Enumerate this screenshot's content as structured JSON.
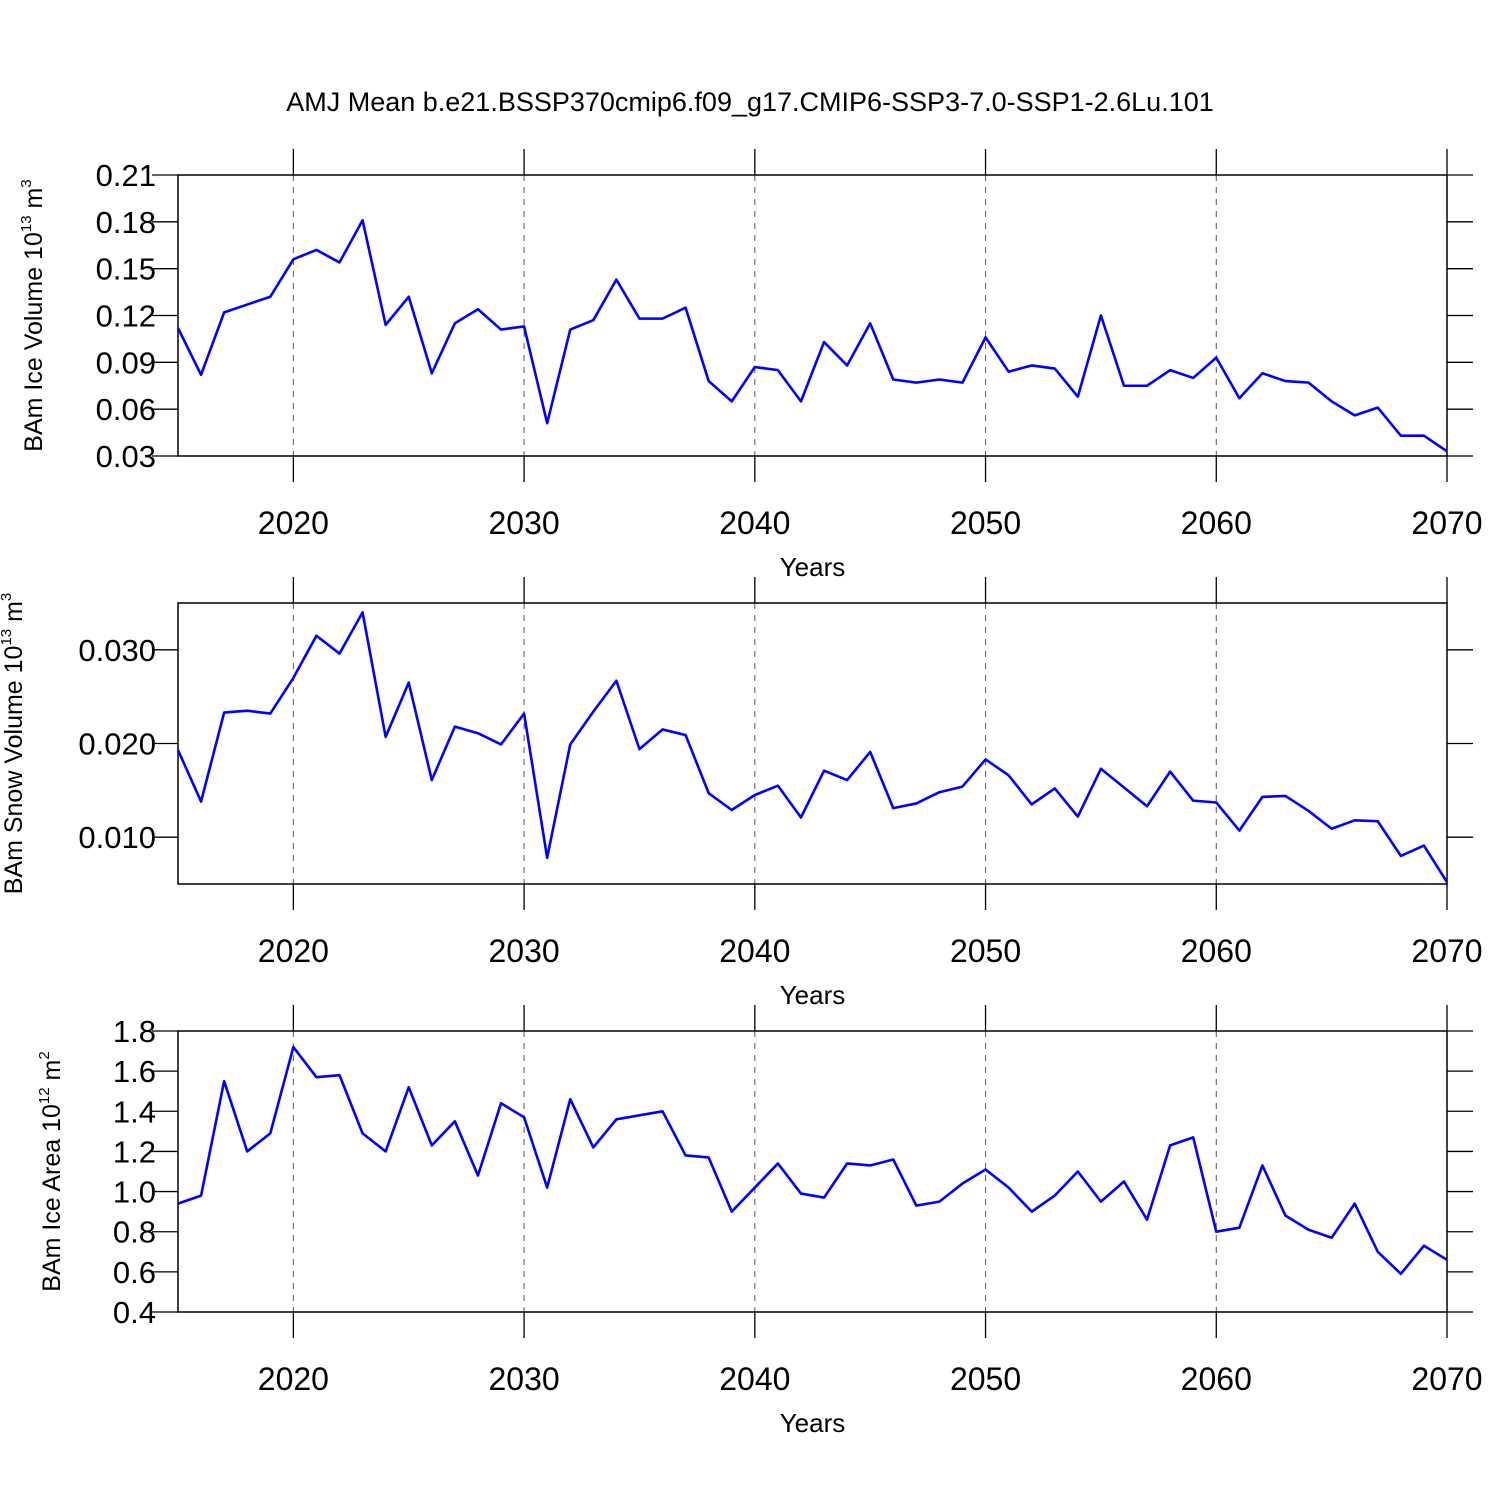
{
  "chart_data": [
    {
      "type": "line",
      "title": "AMJ Mean b.e21.BSSP370cmip6.f09_g17.CMIP6-SSP3-7.0-SSP1-2.6Lu.101",
      "ylabel": [
        "BAm Ice Volume 10",
        "13",
        " m",
        "3"
      ],
      "xlabel": "Years",
      "color": "#0000ff",
      "grid": true,
      "x": [
        2015,
        2016,
        2017,
        2018,
        2019,
        2020,
        2021,
        2022,
        2023,
        2024,
        2025,
        2026,
        2027,
        2028,
        2029,
        2030,
        2031,
        2032,
        2033,
        2034,
        2035,
        2036,
        2037,
        2038,
        2039,
        2040,
        2041,
        2042,
        2043,
        2044,
        2045,
        2046,
        2047,
        2048,
        2049,
        2050,
        2051,
        2052,
        2053,
        2054,
        2055,
        2056,
        2057,
        2058,
        2059,
        2060,
        2061,
        2062,
        2063,
        2064,
        2065,
        2066,
        2067,
        2068,
        2069,
        2070
      ],
      "values": [
        0.112,
        0.082,
        0.122,
        0.127,
        0.132,
        0.156,
        0.162,
        0.154,
        0.181,
        0.114,
        0.132,
        0.083,
        0.115,
        0.124,
        0.111,
        0.113,
        0.051,
        0.111,
        0.117,
        0.143,
        0.118,
        0.118,
        0.125,
        0.078,
        0.065,
        0.087,
        0.085,
        0.065,
        0.103,
        0.088,
        0.115,
        0.079,
        0.077,
        0.079,
        0.077,
        0.106,
        0.084,
        0.088,
        0.086,
        0.068,
        0.12,
        0.075,
        0.075,
        0.085,
        0.08,
        0.093,
        0.067,
        0.083,
        0.078,
        0.077,
        0.065,
        0.056,
        0.061,
        0.043,
        0.043,
        0.033
      ],
      "xlim": [
        2015,
        2070
      ],
      "xticks": [
        2020,
        2030,
        2040,
        2050,
        2060,
        2070
      ],
      "ylim": [
        0.03,
        0.21
      ],
      "yticks": [
        0.03,
        0.06,
        0.09,
        0.12,
        0.15,
        0.18,
        0.21
      ]
    },
    {
      "type": "line",
      "ylabel": [
        "BAm Snow Volume 10",
        "13",
        " m",
        "3"
      ],
      "xlabel": "Years",
      "color": "#0000ff",
      "grid": true,
      "x": [
        2015,
        2016,
        2017,
        2018,
        2019,
        2020,
        2021,
        2022,
        2023,
        2024,
        2025,
        2026,
        2027,
        2028,
        2029,
        2030,
        2031,
        2032,
        2033,
        2034,
        2035,
        2036,
        2037,
        2038,
        2039,
        2040,
        2041,
        2042,
        2043,
        2044,
        2045,
        2046,
        2047,
        2048,
        2049,
        2050,
        2051,
        2052,
        2053,
        2054,
        2055,
        2056,
        2057,
        2058,
        2059,
        2060,
        2061,
        2062,
        2063,
        2064,
        2065,
        2066,
        2067,
        2068,
        2069,
        2070
      ],
      "values": [
        0.0193,
        0.0138,
        0.0233,
        0.0235,
        0.0232,
        0.027,
        0.0315,
        0.0296,
        0.034,
        0.0207,
        0.0265,
        0.0161,
        0.0218,
        0.0211,
        0.0199,
        0.0232,
        0.0078,
        0.0199,
        0.0234,
        0.0267,
        0.0194,
        0.0215,
        0.0209,
        0.0147,
        0.0129,
        0.0145,
        0.0155,
        0.0121,
        0.0171,
        0.0161,
        0.0191,
        0.0131,
        0.0136,
        0.0148,
        0.0154,
        0.0183,
        0.0166,
        0.0135,
        0.0152,
        0.0122,
        0.0173,
        0.0153,
        0.0133,
        0.017,
        0.0139,
        0.0137,
        0.0107,
        0.0143,
        0.0144,
        0.0128,
        0.0109,
        0.0118,
        0.0117,
        0.008,
        0.0091,
        0.0052
      ],
      "xlim": [
        2015,
        2070
      ],
      "xticks": [
        2020,
        2030,
        2040,
        2050,
        2060,
        2070
      ],
      "ylim": [
        0.005,
        0.035
      ],
      "yticks": [
        {
          "value": 0.01,
          "label": "0.010"
        },
        {
          "value": 0.02,
          "label": "0.020"
        },
        {
          "value": 0.03,
          "label": "0.030"
        }
      ]
    },
    {
      "type": "line",
      "ylabel": [
        "BAm Ice Area 10",
        "12",
        " m",
        "2"
      ],
      "xlabel": "Years",
      "color": "#0000ff",
      "grid": true,
      "x": [
        2015,
        2016,
        2017,
        2018,
        2019,
        2020,
        2021,
        2022,
        2023,
        2024,
        2025,
        2026,
        2027,
        2028,
        2029,
        2030,
        2031,
        2032,
        2033,
        2034,
        2035,
        2036,
        2037,
        2038,
        2039,
        2040,
        2041,
        2042,
        2043,
        2044,
        2045,
        2046,
        2047,
        2048,
        2049,
        2050,
        2051,
        2052,
        2053,
        2054,
        2055,
        2056,
        2057,
        2058,
        2059,
        2060,
        2061,
        2062,
        2063,
        2064,
        2065,
        2066,
        2067,
        2068,
        2069,
        2070
      ],
      "values": [
        0.94,
        0.98,
        1.55,
        1.2,
        1.29,
        1.72,
        1.57,
        1.58,
        1.29,
        1.2,
        1.52,
        1.23,
        1.35,
        1.08,
        1.44,
        1.37,
        1.02,
        1.46,
        1.22,
        1.36,
        1.38,
        1.4,
        1.18,
        1.17,
        0.9,
        1.02,
        1.14,
        0.99,
        0.97,
        1.14,
        1.13,
        1.16,
        0.93,
        0.95,
        1.04,
        1.11,
        1.02,
        0.9,
        0.98,
        1.1,
        0.95,
        1.05,
        0.86,
        1.23,
        1.27,
        0.8,
        0.82,
        1.13,
        0.88,
        0.81,
        0.77,
        0.94,
        0.7,
        0.59,
        0.73,
        0.66
      ],
      "xlim": [
        2015,
        2070
      ],
      "xticks": [
        2020,
        2030,
        2040,
        2050,
        2060,
        2070
      ],
      "ylim": [
        0.4,
        1.8
      ],
      "yticks": [
        0.4,
        0.6,
        0.8,
        {
          "value": 1,
          "label": "1.0"
        },
        1.2,
        1.4,
        1.6,
        1.8
      ]
    }
  ]
}
